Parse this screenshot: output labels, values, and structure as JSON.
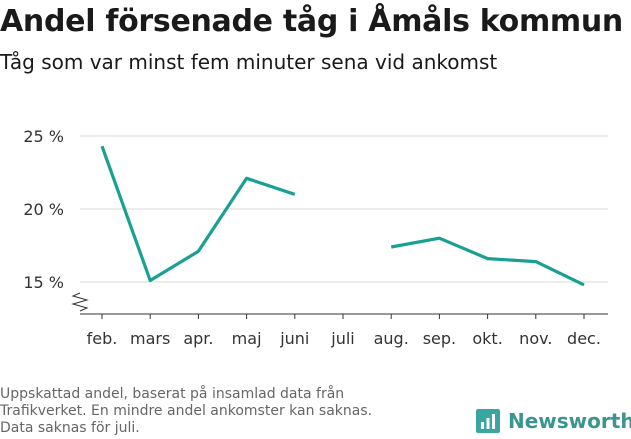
{
  "header": {
    "title": "Andel försenade tåg i Åmåls kommun",
    "subtitle": "Tåg som var minst fem minuter sena vid ankomst"
  },
  "footnote": {
    "lines": [
      "Uppskattad andel, baserat på insamlad data från",
      "Trafikverket. En mindre andel ankomster kan saknas.",
      "Data saknas för juli."
    ]
  },
  "brand": {
    "name": "Newsworthy",
    "icon": "bar-chart-icon",
    "color": "#3a9590"
  },
  "chart_data": {
    "type": "line",
    "title": "Andel försenade tåg i Åmåls kommun",
    "subtitle": "Tåg som var minst fem minuter sena vid ankomst",
    "categories": [
      "feb.",
      "mars",
      "apr.",
      "maj",
      "juni",
      "juli",
      "aug.",
      "sep.",
      "okt.",
      "nov.",
      "dec."
    ],
    "series": [
      {
        "values": [
          24.3,
          15.1,
          17.1,
          22.1,
          21.0,
          null,
          17.4,
          18.0,
          16.6,
          16.4,
          14.8
        ],
        "color": "#1aa093"
      }
    ],
    "y_ticks": [
      15,
      20,
      25
    ],
    "y_tick_labels": [
      "15 %",
      "20 %",
      "25 %"
    ],
    "ylim": [
      13.0,
      25.0
    ],
    "y_axis_break": true,
    "grid": true,
    "xlabel": "",
    "ylabel": ""
  }
}
